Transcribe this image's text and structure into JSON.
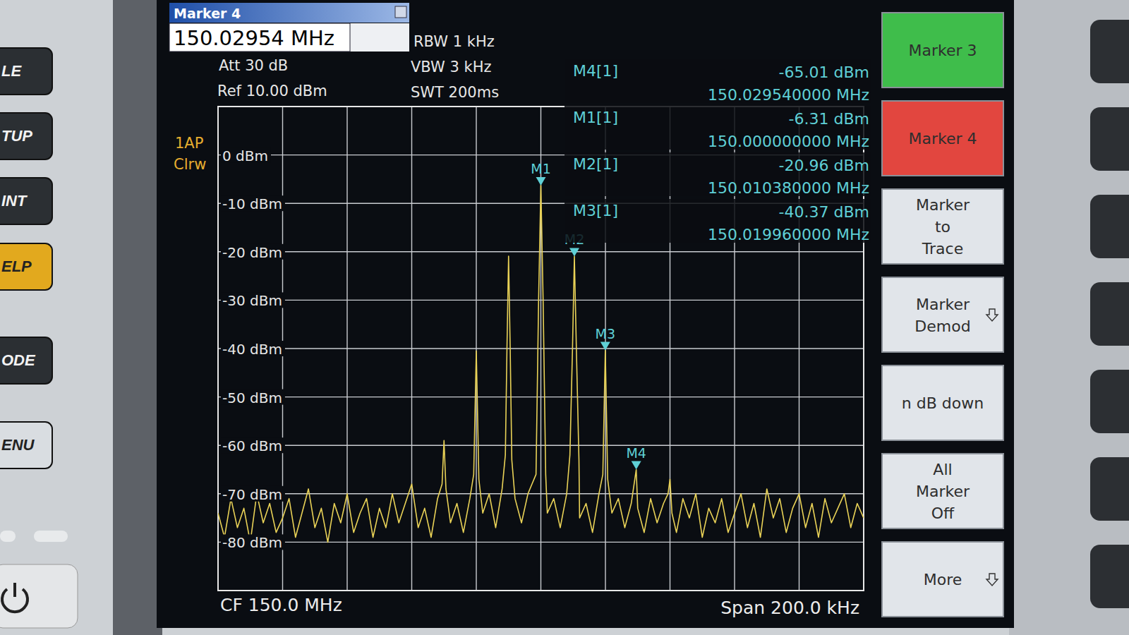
{
  "chart_data": {
    "type": "line",
    "x": [
      149.9,
      149.902,
      149.904,
      149.906,
      149.908,
      149.91,
      149.912,
      149.914,
      149.916,
      149.918,
      149.92,
      149.922,
      149.924,
      149.926,
      149.928,
      149.93,
      149.932,
      149.934,
      149.936,
      149.938,
      149.94,
      149.942,
      149.944,
      149.946,
      149.948,
      149.95,
      149.952,
      149.954,
      149.956,
      149.958,
      149.96,
      149.962,
      149.964,
      149.966,
      149.968,
      149.9694,
      149.97,
      149.9706,
      149.972,
      149.974,
      149.976,
      149.978,
      149.9792,
      149.98,
      149.9808,
      149.982,
      149.984,
      149.986,
      149.988,
      149.989,
      149.9895,
      149.99,
      149.9905,
      149.991,
      149.992,
      149.994,
      149.996,
      149.9985,
      149.9993,
      150.0,
      150.0007,
      150.0015,
      150.002,
      150.004,
      150.006,
      150.008,
      150.009,
      150.0098,
      150.01038,
      150.011,
      150.0118,
      150.012,
      150.014,
      150.016,
      150.018,
      150.0192,
      150.01996,
      150.0207,
      150.022,
      150.024,
      150.026,
      150.028,
      150.02954,
      150.03,
      150.032,
      150.034,
      150.036,
      150.038,
      150.0394,
      150.04,
      150.0406,
      150.042,
      150.044,
      150.046,
      150.048,
      150.05,
      150.052,
      150.054,
      150.056,
      150.058,
      150.06,
      150.062,
      150.064,
      150.066,
      150.068,
      150.07,
      150.072,
      150.074,
      150.076,
      150.078,
      150.08,
      150.082,
      150.084,
      150.086,
      150.088,
      150.09,
      150.092,
      150.094,
      150.096,
      150.098,
      150.1
    ],
    "series": [
      {
        "color": "#e9d257",
        "values": [
          -74,
          -79,
          -71,
          -77,
          -73,
          -80,
          -70,
          -76,
          -72,
          -78,
          -75,
          -71,
          -79,
          -74,
          -69,
          -77,
          -73,
          -80,
          -72,
          -76,
          -70,
          -78,
          -74,
          -71,
          -79,
          -73,
          -77,
          -70,
          -76,
          -72,
          -68,
          -77,
          -73,
          -79,
          -71,
          -68,
          -59,
          -69,
          -76,
          -72,
          -78,
          -71,
          -66,
          -40.5,
          -67,
          -74,
          -70,
          -77,
          -69,
          -62,
          -40,
          -20.9,
          -40,
          -63,
          -71,
          -76,
          -70,
          -66,
          -30,
          -6.31,
          -30,
          -66,
          -74,
          -71,
          -77,
          -70,
          -62,
          -40,
          -20.96,
          -40,
          -63,
          -75,
          -72,
          -78,
          -70,
          -66,
          -40.37,
          -67,
          -74,
          -71,
          -77,
          -72,
          -65.01,
          -73,
          -78,
          -71,
          -76,
          -72,
          -70,
          -67,
          -74,
          -78,
          -71,
          -75,
          -70,
          -79,
          -73,
          -76,
          -71,
          -78,
          -74,
          -70,
          -77,
          -72,
          -79,
          -69,
          -75,
          -71,
          -78,
          -73,
          -70,
          -77,
          -72,
          -79,
          -71,
          -76,
          -73,
          -70,
          -77,
          -72,
          -75
        ]
      }
    ],
    "xlim": [
      149.9,
      150.1
    ],
    "ylim": [
      -90,
      10
    ],
    "xticks": [
      149.9,
      149.92,
      149.94,
      149.96,
      149.98,
      150.0,
      150.02,
      150.04,
      150.06,
      150.08,
      150.1
    ],
    "yticks": [
      {
        "value": 0,
        "label": "0 dBm"
      },
      {
        "value": -10,
        "label": "-10 dBm"
      },
      {
        "value": -20,
        "label": "-20 dBm"
      },
      {
        "value": -30,
        "label": "-30 dBm"
      },
      {
        "value": -40,
        "label": "-40 dBm"
      },
      {
        "value": -50,
        "label": "-50 dBm"
      },
      {
        "value": -60,
        "label": "-60 dBm"
      },
      {
        "value": -70,
        "label": "-70 dBm"
      },
      {
        "value": -80,
        "label": "-80 dBm"
      }
    ],
    "tick_labels": "y",
    "grid": true,
    "center_frequency_label": "CF 150.0 MHz",
    "span_label": "Span 200.0 kHz",
    "markers": [
      {
        "name": "M4",
        "readout": "M4[1]",
        "x": 150.02954,
        "y": -65.01,
        "level_label": "-65.01 dBm",
        "freq_label": "150.029540000 MHz"
      },
      {
        "name": "M1",
        "readout": "M1[1]",
        "x": 150.0,
        "y": -6.31,
        "level_label": "-6.31 dBm",
        "freq_label": "150.000000000 MHz"
      },
      {
        "name": "M2",
        "readout": "M2[1]",
        "x": 150.01038,
        "y": -20.96,
        "level_label": "-20.96 dBm",
        "freq_label": "150.010380000 MHz"
      },
      {
        "name": "M3",
        "readout": "M3[1]",
        "x": 150.01996,
        "y": -40.37,
        "level_label": "-40.37 dBm",
        "freq_label": "150.019960000 MHz"
      }
    ]
  },
  "instrument": {
    "entry_title": "Marker 4",
    "entry_value": "150.02954 MHz",
    "att": "Att 30 dB",
    "ref": "Ref 10.00 dBm",
    "rbw": "RBW 1 kHz",
    "vbw": "VBW 3 kHz",
    "swt": "SWT 200ms",
    "trace_labels": [
      "1AP",
      "Clrw"
    ],
    "softkeys": [
      {
        "lines": [
          "Marker 3"
        ],
        "color": "#3fbd4b"
      },
      {
        "lines": [
          "Marker 4"
        ],
        "color": "#e2463f"
      },
      {
        "lines": [
          "Marker",
          "to",
          "Trace"
        ],
        "color": "#e1e5ea"
      },
      {
        "lines": [
          "Marker",
          "Demod"
        ],
        "color": "#e1e5ea",
        "submenu": true
      },
      {
        "lines": [
          "n dB down"
        ],
        "color": "#e1e5ea"
      },
      {
        "lines": [
          "All",
          "Marker",
          "Off"
        ],
        "color": "#e1e5ea"
      },
      {
        "lines": [
          "More"
        ],
        "color": "#e1e5ea",
        "submenu": true
      }
    ],
    "panel_keys": [
      {
        "label": "LE",
        "color": "#2b2f33"
      },
      {
        "label": "TUP",
        "color": "#2b2f33"
      },
      {
        "label": "INT",
        "color": "#2b2f33"
      },
      {
        "label": "ELP",
        "color": "#e2a91e"
      },
      {
        "label": "ODE",
        "color": "#2b2f33"
      },
      {
        "label": "ENU",
        "color": "#d9dde1"
      }
    ]
  }
}
